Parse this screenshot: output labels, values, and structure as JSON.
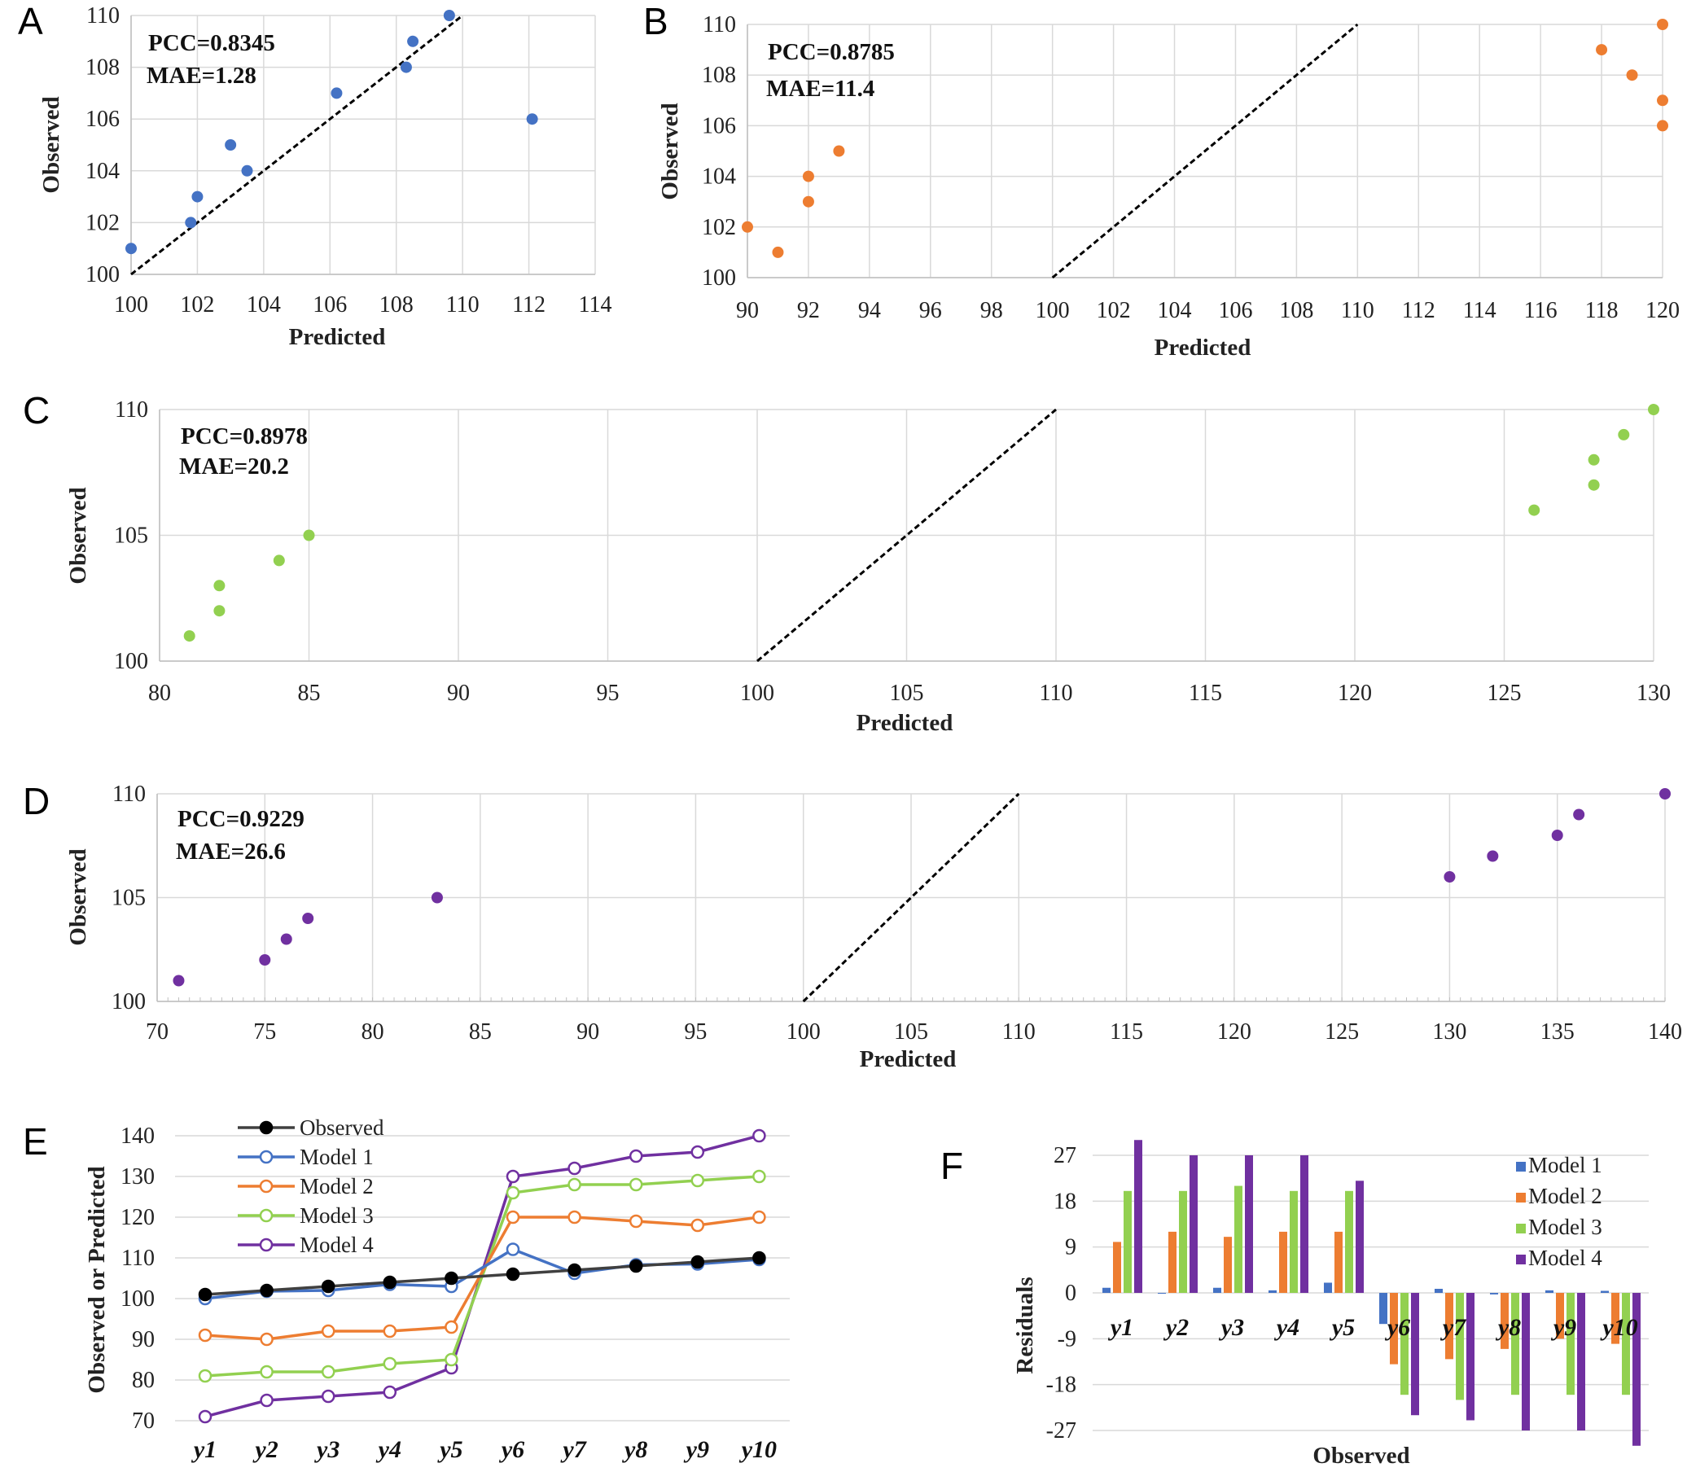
{
  "colors": {
    "model1": "#4472c4",
    "model2": "#ed7d31",
    "model3": "#92d050",
    "model4": "#7030a0",
    "observed": "#000000",
    "identity": "#000000"
  },
  "chart_data": [
    {
      "panel": "A",
      "type": "scatter",
      "xlabel": "Predicted",
      "ylabel": "Observed",
      "xlim": [
        100,
        114
      ],
      "ylim": [
        100,
        110
      ],
      "xticks": [
        100,
        102,
        104,
        106,
        108,
        110,
        112,
        114
      ],
      "yticks": [
        100,
        102,
        104,
        106,
        108,
        110
      ],
      "annotations": [
        "PCC=0.8345",
        "MAE=1.28"
      ],
      "identity_line": [
        [
          100,
          100
        ],
        [
          110,
          110
        ]
      ],
      "color": "#4472c4",
      "x": [
        100,
        101.8,
        102,
        103,
        103.5,
        106.2,
        108.3,
        108.5,
        109.6,
        112.1
      ],
      "y": [
        101,
        102,
        103,
        105,
        104,
        107,
        108,
        109,
        110,
        106
      ]
    },
    {
      "panel": "B",
      "type": "scatter",
      "xlabel": "Predicted",
      "ylabel": "Observed",
      "xlim": [
        90,
        120
      ],
      "ylim": [
        100,
        110
      ],
      "xticks": [
        90,
        92,
        94,
        96,
        98,
        100,
        102,
        104,
        106,
        108,
        110,
        112,
        114,
        116,
        118,
        120
      ],
      "yticks": [
        100,
        102,
        104,
        106,
        108,
        110
      ],
      "annotations": [
        "PCC=0.8785",
        "MAE=11.4"
      ],
      "identity_line": [
        [
          100,
          100
        ],
        [
          110,
          110
        ]
      ],
      "color": "#ed7d31",
      "x": [
        90,
        91,
        92,
        92,
        93,
        118,
        119,
        120,
        120,
        120
      ],
      "y": [
        102,
        101,
        103,
        104,
        105,
        109,
        108,
        110,
        107,
        106
      ]
    },
    {
      "panel": "C",
      "type": "scatter",
      "xlabel": "Predicted",
      "ylabel": "Observed",
      "xlim": [
        80,
        130
      ],
      "ylim": [
        100,
        110
      ],
      "xticks": [
        80,
        85,
        90,
        95,
        100,
        105,
        110,
        115,
        120,
        125,
        130
      ],
      "yticks": [
        100,
        105,
        110
      ],
      "annotations": [
        "PCC=0.8978",
        "MAE=20.2"
      ],
      "identity_line": [
        [
          100,
          100
        ],
        [
          110,
          110
        ]
      ],
      "color": "#92d050",
      "x": [
        81,
        82,
        82,
        84,
        85,
        126,
        128,
        128,
        129,
        130
      ],
      "y": [
        101,
        102,
        103,
        104,
        105,
        106,
        107,
        108,
        109,
        110
      ]
    },
    {
      "panel": "D",
      "type": "scatter",
      "xlabel": "Predicted",
      "ylabel": "Observed",
      "xlim": [
        70,
        140
      ],
      "ylim": [
        100,
        110
      ],
      "xticks": [
        70,
        75,
        80,
        85,
        90,
        95,
        100,
        105,
        110,
        115,
        120,
        125,
        130,
        135,
        140
      ],
      "yticks": [
        100,
        105,
        110
      ],
      "annotations": [
        "PCC=0.9229",
        "MAE=26.6"
      ],
      "identity_line": [
        [
          100,
          100
        ],
        [
          110,
          110
        ]
      ],
      "color": "#7030a0",
      "x": [
        71,
        75,
        76,
        77,
        83,
        130,
        132,
        135,
        136,
        140
      ],
      "y": [
        101,
        102,
        103,
        104,
        105,
        106,
        107,
        108,
        109,
        110
      ]
    },
    {
      "panel": "E",
      "type": "line",
      "xlabel": "",
      "ylabel": "Observed or Predicted",
      "ylim": [
        70,
        140
      ],
      "yticks": [
        70,
        80,
        90,
        100,
        110,
        120,
        130,
        140
      ],
      "categories": [
        "y1",
        "y2",
        "y3",
        "y4",
        "y5",
        "y6",
        "y7",
        "y8",
        "y9",
        "y10"
      ],
      "series": [
        {
          "name": "Observed",
          "color": "#404040",
          "marker": "#000000",
          "filled": true,
          "values": [
            101,
            102,
            103,
            104,
            105,
            106,
            107,
            108,
            109,
            110
          ]
        },
        {
          "name": "Model 1",
          "color": "#4472c4",
          "marker": "#4472c4",
          "filled": false,
          "values": [
            100,
            101.8,
            102,
            103.5,
            103,
            112.1,
            106.2,
            108.3,
            108.5,
            109.6
          ]
        },
        {
          "name": "Model 2",
          "color": "#ed7d31",
          "marker": "#ed7d31",
          "filled": false,
          "values": [
            91,
            90,
            92,
            92,
            93,
            120,
            120,
            119,
            118,
            120
          ]
        },
        {
          "name": "Model 3",
          "color": "#92d050",
          "marker": "#92d050",
          "filled": false,
          "values": [
            81,
            82,
            82,
            84,
            85,
            126,
            128,
            128,
            129,
            130
          ]
        },
        {
          "name": "Model 4",
          "color": "#7030a0",
          "marker": "#7030a0",
          "filled": false,
          "values": [
            71,
            75,
            76,
            77,
            83,
            130,
            132,
            135,
            136,
            140
          ]
        }
      ]
    },
    {
      "panel": "F",
      "type": "bar",
      "xlabel": "Observed",
      "ylabel": "Residuals",
      "ylim": [
        -27,
        27
      ],
      "yticks": [
        27,
        18,
        9,
        0,
        -9,
        -18,
        -27
      ],
      "categories": [
        "y1",
        "y2",
        "y3",
        "y4",
        "y5",
        "y6",
        "y7",
        "y8",
        "y9",
        "y10"
      ],
      "series": [
        {
          "name": "Model 1",
          "color": "#4472c4",
          "values": [
            1,
            0,
            1,
            0.5,
            2,
            -6.1,
            0.8,
            -0.3,
            0.5,
            0.4
          ]
        },
        {
          "name": "Model 2",
          "color": "#ed7d31",
          "values": [
            10,
            12,
            11,
            12,
            12,
            -14,
            -13,
            -11,
            -9,
            -10
          ]
        },
        {
          "name": "Model 3",
          "color": "#92d050",
          "values": [
            20,
            20,
            21,
            20,
            20,
            -20,
            -21,
            -20,
            -20,
            -20
          ]
        },
        {
          "name": "Model 4",
          "color": "#7030a0",
          "values": [
            30,
            27,
            27,
            27,
            22,
            -24,
            -25,
            -27,
            -27,
            -30
          ]
        }
      ]
    }
  ]
}
